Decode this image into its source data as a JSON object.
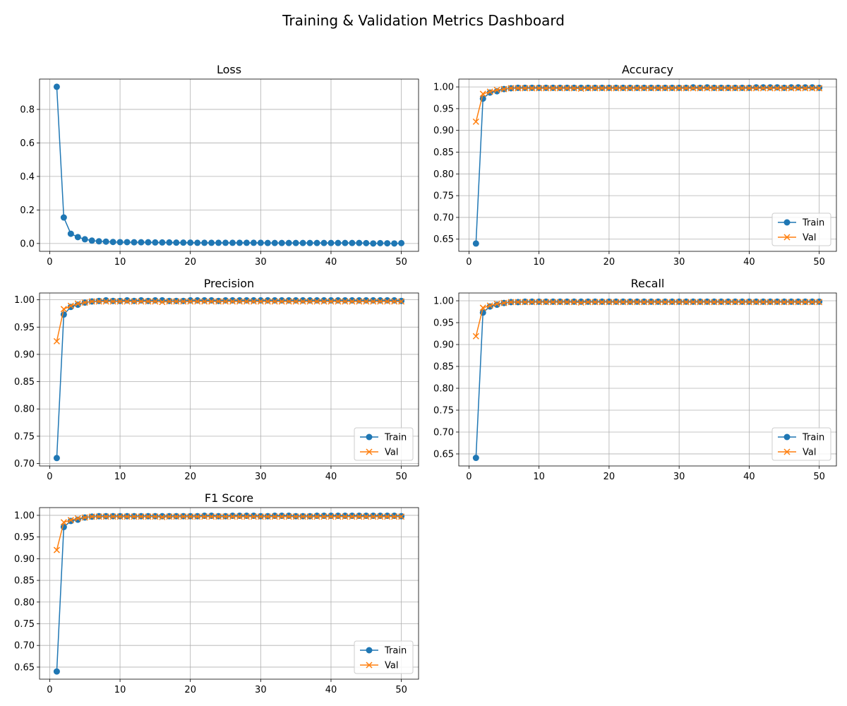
{
  "title": "Training & Validation Metrics Dashboard",
  "colors": {
    "train": "#1f77b4",
    "val": "#ff7f0e",
    "grid": "#b0b0b0"
  },
  "chart_data": [
    {
      "type": "line",
      "title": "Loss",
      "xlim": [
        -1.45,
        52.45
      ],
      "ylim": [
        -0.047,
        0.981
      ],
      "xticks": [
        0,
        10,
        20,
        30,
        40,
        50
      ],
      "yticks": [
        0.0,
        0.2,
        0.4,
        0.6,
        0.8
      ],
      "ytick_labels": [
        "0.0",
        "0.2",
        "0.4",
        "0.6",
        "0.8"
      ],
      "grid": true,
      "legend": null,
      "x": [
        1,
        2,
        3,
        4,
        5,
        6,
        7,
        8,
        9,
        10,
        11,
        12,
        13,
        14,
        15,
        16,
        17,
        18,
        19,
        20,
        21,
        22,
        23,
        24,
        25,
        26,
        27,
        28,
        29,
        30,
        31,
        32,
        33,
        34,
        35,
        36,
        37,
        38,
        39,
        40,
        41,
        42,
        43,
        44,
        45,
        46,
        47,
        48,
        49,
        50
      ],
      "series": [
        {
          "values": [
            0.935,
            0.155,
            0.058,
            0.038,
            0.025,
            0.017,
            0.013,
            0.011,
            0.009,
            0.008,
            0.008,
            0.007,
            0.007,
            0.007,
            0.006,
            0.006,
            0.006,
            0.005,
            0.005,
            0.005,
            0.004,
            0.004,
            0.004,
            0.004,
            0.004,
            0.004,
            0.004,
            0.004,
            0.004,
            0.004,
            0.003,
            0.003,
            0.003,
            0.003,
            0.003,
            0.003,
            0.003,
            0.003,
            0.003,
            0.003,
            0.003,
            0.003,
            0.003,
            0.003,
            0.002,
            0.0,
            0.002,
            0.001,
            0.0,
            0.002
          ]
        }
      ]
    },
    {
      "type": "line",
      "title": "Accuracy",
      "xlim": [
        -1.45,
        52.45
      ],
      "ylim": [
        0.622,
        1.018
      ],
      "xticks": [
        0,
        10,
        20,
        30,
        40,
        50
      ],
      "yticks": [
        0.65,
        0.7,
        0.75,
        0.8,
        0.85,
        0.9,
        0.95,
        1.0
      ],
      "ytick_labels": [
        "0.65",
        "0.70",
        "0.75",
        "0.80",
        "0.85",
        "0.90",
        "0.95",
        "1.00"
      ],
      "grid": true,
      "legend": "lower right",
      "x": [
        1,
        2,
        3,
        4,
        5,
        6,
        7,
        8,
        9,
        10,
        11,
        12,
        13,
        14,
        15,
        16,
        17,
        18,
        19,
        20,
        21,
        22,
        23,
        24,
        25,
        26,
        27,
        28,
        29,
        30,
        31,
        32,
        33,
        34,
        35,
        36,
        37,
        38,
        39,
        40,
        41,
        42,
        43,
        44,
        45,
        46,
        47,
        48,
        49,
        50
      ],
      "series": [
        {
          "name": "Train",
          "marker": "o",
          "values": [
            0.64,
            0.973,
            0.987,
            0.99,
            0.995,
            0.997,
            0.998,
            0.998,
            0.998,
            0.998,
            0.998,
            0.998,
            0.998,
            0.998,
            0.998,
            0.998,
            0.998,
            0.998,
            0.998,
            0.998,
            0.998,
            0.998,
            0.998,
            0.998,
            0.998,
            0.998,
            0.998,
            0.998,
            0.998,
            0.998,
            0.998,
            0.999,
            0.998,
            0.999,
            0.998,
            0.998,
            0.998,
            0.998,
            0.998,
            0.998,
            0.999,
            0.999,
            0.999,
            0.999,
            0.998,
            0.999,
            0.999,
            0.999,
            0.999,
            0.998
          ]
        },
        {
          "name": "Val",
          "marker": "x",
          "values": [
            0.92,
            0.984,
            0.989,
            0.993,
            0.995,
            0.997,
            0.997,
            0.997,
            0.997,
            0.997,
            0.997,
            0.997,
            0.997,
            0.997,
            0.997,
            0.996,
            0.997,
            0.997,
            0.997,
            0.997,
            0.997,
            0.997,
            0.997,
            0.997,
            0.997,
            0.997,
            0.997,
            0.997,
            0.997,
            0.997,
            0.997,
            0.997,
            0.997,
            0.997,
            0.997,
            0.997,
            0.997,
            0.997,
            0.997,
            0.997,
            0.997,
            0.997,
            0.997,
            0.997,
            0.997,
            0.997,
            0.997,
            0.997,
            0.997,
            0.997
          ]
        }
      ]
    },
    {
      "type": "line",
      "title": "Precision",
      "xlim": [
        -1.45,
        52.45
      ],
      "ylim": [
        0.6955,
        1.0125
      ],
      "xticks": [
        0,
        10,
        20,
        30,
        40,
        50
      ],
      "yticks": [
        0.7,
        0.75,
        0.8,
        0.85,
        0.9,
        0.95,
        1.0
      ],
      "ytick_labels": [
        "0.70",
        "0.75",
        "0.80",
        "0.85",
        "0.90",
        "0.95",
        "1.00"
      ],
      "grid": true,
      "legend": "lower right",
      "x": [
        1,
        2,
        3,
        4,
        5,
        6,
        7,
        8,
        9,
        10,
        11,
        12,
        13,
        14,
        15,
        16,
        17,
        18,
        19,
        20,
        21,
        22,
        23,
        24,
        25,
        26,
        27,
        28,
        29,
        30,
        31,
        32,
        33,
        34,
        35,
        36,
        37,
        38,
        39,
        40,
        41,
        42,
        43,
        44,
        45,
        46,
        47,
        48,
        49,
        50
      ],
      "series": [
        {
          "name": "Train",
          "marker": "o",
          "values": [
            0.71,
            0.973,
            0.987,
            0.991,
            0.995,
            0.997,
            0.998,
            0.999,
            0.998,
            0.998,
            0.999,
            0.998,
            0.999,
            0.998,
            0.999,
            0.999,
            0.998,
            0.998,
            0.998,
            0.999,
            0.999,
            0.999,
            0.999,
            0.998,
            0.999,
            0.999,
            0.999,
            0.999,
            0.999,
            0.999,
            0.999,
            0.999,
            0.999,
            0.999,
            0.999,
            0.999,
            0.999,
            0.999,
            0.999,
            0.999,
            0.999,
            0.999,
            0.999,
            0.999,
            0.999,
            0.999,
            0.999,
            0.999,
            0.999,
            0.998
          ]
        },
        {
          "name": "Val",
          "marker": "x",
          "values": [
            0.924,
            0.983,
            0.989,
            0.993,
            0.995,
            0.997,
            0.997,
            0.997,
            0.997,
            0.997,
            0.997,
            0.997,
            0.997,
            0.997,
            0.997,
            0.996,
            0.997,
            0.997,
            0.997,
            0.997,
            0.997,
            0.997,
            0.997,
            0.997,
            0.997,
            0.997,
            0.997,
            0.997,
            0.997,
            0.997,
            0.997,
            0.997,
            0.997,
            0.997,
            0.997,
            0.997,
            0.997,
            0.997,
            0.997,
            0.997,
            0.997,
            0.997,
            0.997,
            0.997,
            0.997,
            0.997,
            0.997,
            0.997,
            0.997,
            0.997
          ]
        }
      ]
    },
    {
      "type": "line",
      "title": "Recall",
      "xlim": [
        -1.45,
        52.45
      ],
      "ylim": [
        0.6225,
        1.0178
      ],
      "xticks": [
        0,
        10,
        20,
        30,
        40,
        50
      ],
      "yticks": [
        0.65,
        0.7,
        0.75,
        0.8,
        0.85,
        0.9,
        0.95,
        1.0
      ],
      "ytick_labels": [
        "0.65",
        "0.70",
        "0.75",
        "0.80",
        "0.85",
        "0.90",
        "0.95",
        "1.00"
      ],
      "grid": true,
      "legend": "lower right",
      "x": [
        1,
        2,
        3,
        4,
        5,
        6,
        7,
        8,
        9,
        10,
        11,
        12,
        13,
        14,
        15,
        16,
        17,
        18,
        19,
        20,
        21,
        22,
        23,
        24,
        25,
        26,
        27,
        28,
        29,
        30,
        31,
        32,
        33,
        34,
        35,
        36,
        37,
        38,
        39,
        40,
        41,
        42,
        43,
        44,
        45,
        46,
        47,
        48,
        49,
        50
      ],
      "series": [
        {
          "name": "Train",
          "marker": "o",
          "values": [
            0.641,
            0.973,
            0.987,
            0.991,
            0.995,
            0.997,
            0.997,
            0.998,
            0.998,
            0.998,
            0.998,
            0.998,
            0.998,
            0.998,
            0.998,
            0.998,
            0.998,
            0.998,
            0.998,
            0.998,
            0.998,
            0.998,
            0.998,
            0.998,
            0.998,
            0.998,
            0.998,
            0.998,
            0.998,
            0.998,
            0.998,
            0.998,
            0.998,
            0.998,
            0.998,
            0.998,
            0.998,
            0.998,
            0.998,
            0.998,
            0.998,
            0.998,
            0.998,
            0.998,
            0.998,
            0.998,
            0.998,
            0.998,
            0.998,
            0.998
          ]
        },
        {
          "name": "Val",
          "marker": "x",
          "values": [
            0.919,
            0.984,
            0.989,
            0.993,
            0.995,
            0.997,
            0.997,
            0.997,
            0.997,
            0.997,
            0.997,
            0.997,
            0.997,
            0.997,
            0.997,
            0.996,
            0.997,
            0.997,
            0.997,
            0.997,
            0.997,
            0.997,
            0.997,
            0.997,
            0.997,
            0.997,
            0.997,
            0.997,
            0.997,
            0.997,
            0.997,
            0.997,
            0.997,
            0.997,
            0.997,
            0.997,
            0.997,
            0.997,
            0.997,
            0.997,
            0.997,
            0.997,
            0.997,
            0.997,
            0.997,
            0.997,
            0.997,
            0.997,
            0.997,
            0.997
          ]
        }
      ]
    },
    {
      "type": "line",
      "title": "F1 Score",
      "xlim": [
        -1.45,
        52.45
      ],
      "ylim": [
        0.6222,
        1.0178
      ],
      "xticks": [
        0,
        10,
        20,
        30,
        40,
        50
      ],
      "yticks": [
        0.65,
        0.7,
        0.75,
        0.8,
        0.85,
        0.9,
        0.95,
        1.0
      ],
      "ytick_labels": [
        "0.65",
        "0.70",
        "0.75",
        "0.80",
        "0.85",
        "0.90",
        "0.95",
        "1.00"
      ],
      "grid": true,
      "legend": "lower right",
      "x": [
        1,
        2,
        3,
        4,
        5,
        6,
        7,
        8,
        9,
        10,
        11,
        12,
        13,
        14,
        15,
        16,
        17,
        18,
        19,
        20,
        21,
        22,
        23,
        24,
        25,
        26,
        27,
        28,
        29,
        30,
        31,
        32,
        33,
        34,
        35,
        36,
        37,
        38,
        39,
        40,
        41,
        42,
        43,
        44,
        45,
        46,
        47,
        48,
        49,
        50
      ],
      "series": [
        {
          "name": "Train",
          "marker": "o",
          "values": [
            0.64,
            0.973,
            0.987,
            0.99,
            0.995,
            0.997,
            0.998,
            0.998,
            0.998,
            0.998,
            0.998,
            0.998,
            0.998,
            0.998,
            0.998,
            0.998,
            0.998,
            0.998,
            0.998,
            0.998,
            0.998,
            0.999,
            0.999,
            0.998,
            0.998,
            0.999,
            0.999,
            0.999,
            0.999,
            0.998,
            0.998,
            0.999,
            0.999,
            0.999,
            0.998,
            0.998,
            0.998,
            0.999,
            0.999,
            0.999,
            0.999,
            0.999,
            0.999,
            0.999,
            0.999,
            0.999,
            0.999,
            0.999,
            0.999,
            0.998
          ]
        },
        {
          "name": "Val",
          "marker": "x",
          "values": [
            0.92,
            0.984,
            0.989,
            0.993,
            0.995,
            0.997,
            0.997,
            0.997,
            0.997,
            0.997,
            0.997,
            0.997,
            0.997,
            0.997,
            0.997,
            0.996,
            0.997,
            0.997,
            0.997,
            0.997,
            0.997,
            0.997,
            0.997,
            0.997,
            0.997,
            0.997,
            0.997,
            0.997,
            0.997,
            0.997,
            0.997,
            0.997,
            0.997,
            0.997,
            0.997,
            0.997,
            0.997,
            0.997,
            0.997,
            0.997,
            0.997,
            0.997,
            0.997,
            0.997,
            0.997,
            0.997,
            0.997,
            0.997,
            0.997,
            0.997
          ]
        }
      ]
    }
  ]
}
